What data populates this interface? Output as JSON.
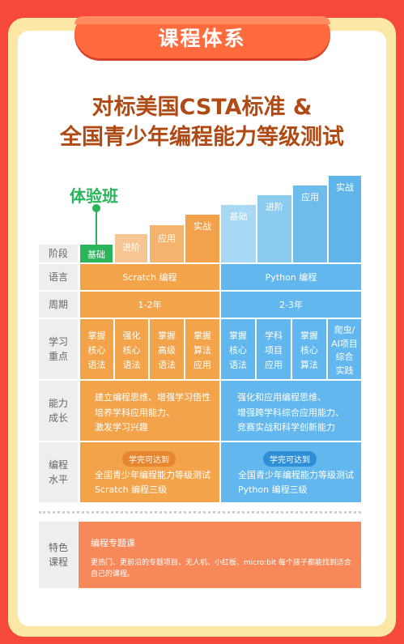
{
  "ribbon_title": "课程体系",
  "headline_line1": "对标美国CSTA标准 &",
  "headline_line2": "全国青少年编程能力等级测试",
  "trial_label": "体验班",
  "stairs": [
    "基础",
    "进阶",
    "应用",
    "实战",
    "基础",
    "进阶",
    "应用",
    "实战"
  ],
  "rows": {
    "stage": "阶段",
    "language": "语言",
    "period": "周期",
    "focus": "学习\n重点",
    "growth": "能力\n成长",
    "level": "编程\n水平",
    "feature": "特色\n课程"
  },
  "scratch": {
    "language": "Scratch 编程",
    "period": "1-2年",
    "focus": [
      "掌握\n核心\n语法",
      "强化\n核心\n语法",
      "掌握\n高级\n语法",
      "掌握\n算法\n应用"
    ],
    "growth": "建立编程思维、增强学习悟性\n培养学科应用能力、\n激发学习兴趣",
    "level_pill": "学完可达到",
    "level_text": "全国青少年编程能力等级测试\nScratch 编程三级"
  },
  "python": {
    "language": "Python 编程",
    "period": "2-3年",
    "focus": [
      "掌握\n核心\n语法",
      "学科\n项目\n应用",
      "掌握\n核心\n算法",
      "爬虫/\nAI项目\n综合\n实践"
    ],
    "growth": "强化和应用编程思维、\n增强跨学科综合应用能力、\n竞赛实战和科学创新能力",
    "level_pill": "学完可达到",
    "level_text": "全国青少年编程能力等级测试\nPython 编程三级"
  },
  "feature": {
    "title": "编程专题课",
    "desc": "更热门、更前沿的专题项目、无人机、小红板、micro:bit 每个孩子都能找到适合自己的课程。"
  },
  "colors": {
    "background": "#f6493a",
    "scratch": "#f3a34a",
    "python": "#61b7ee",
    "headline": "#b04a14",
    "trial": "#2bb55a"
  }
}
